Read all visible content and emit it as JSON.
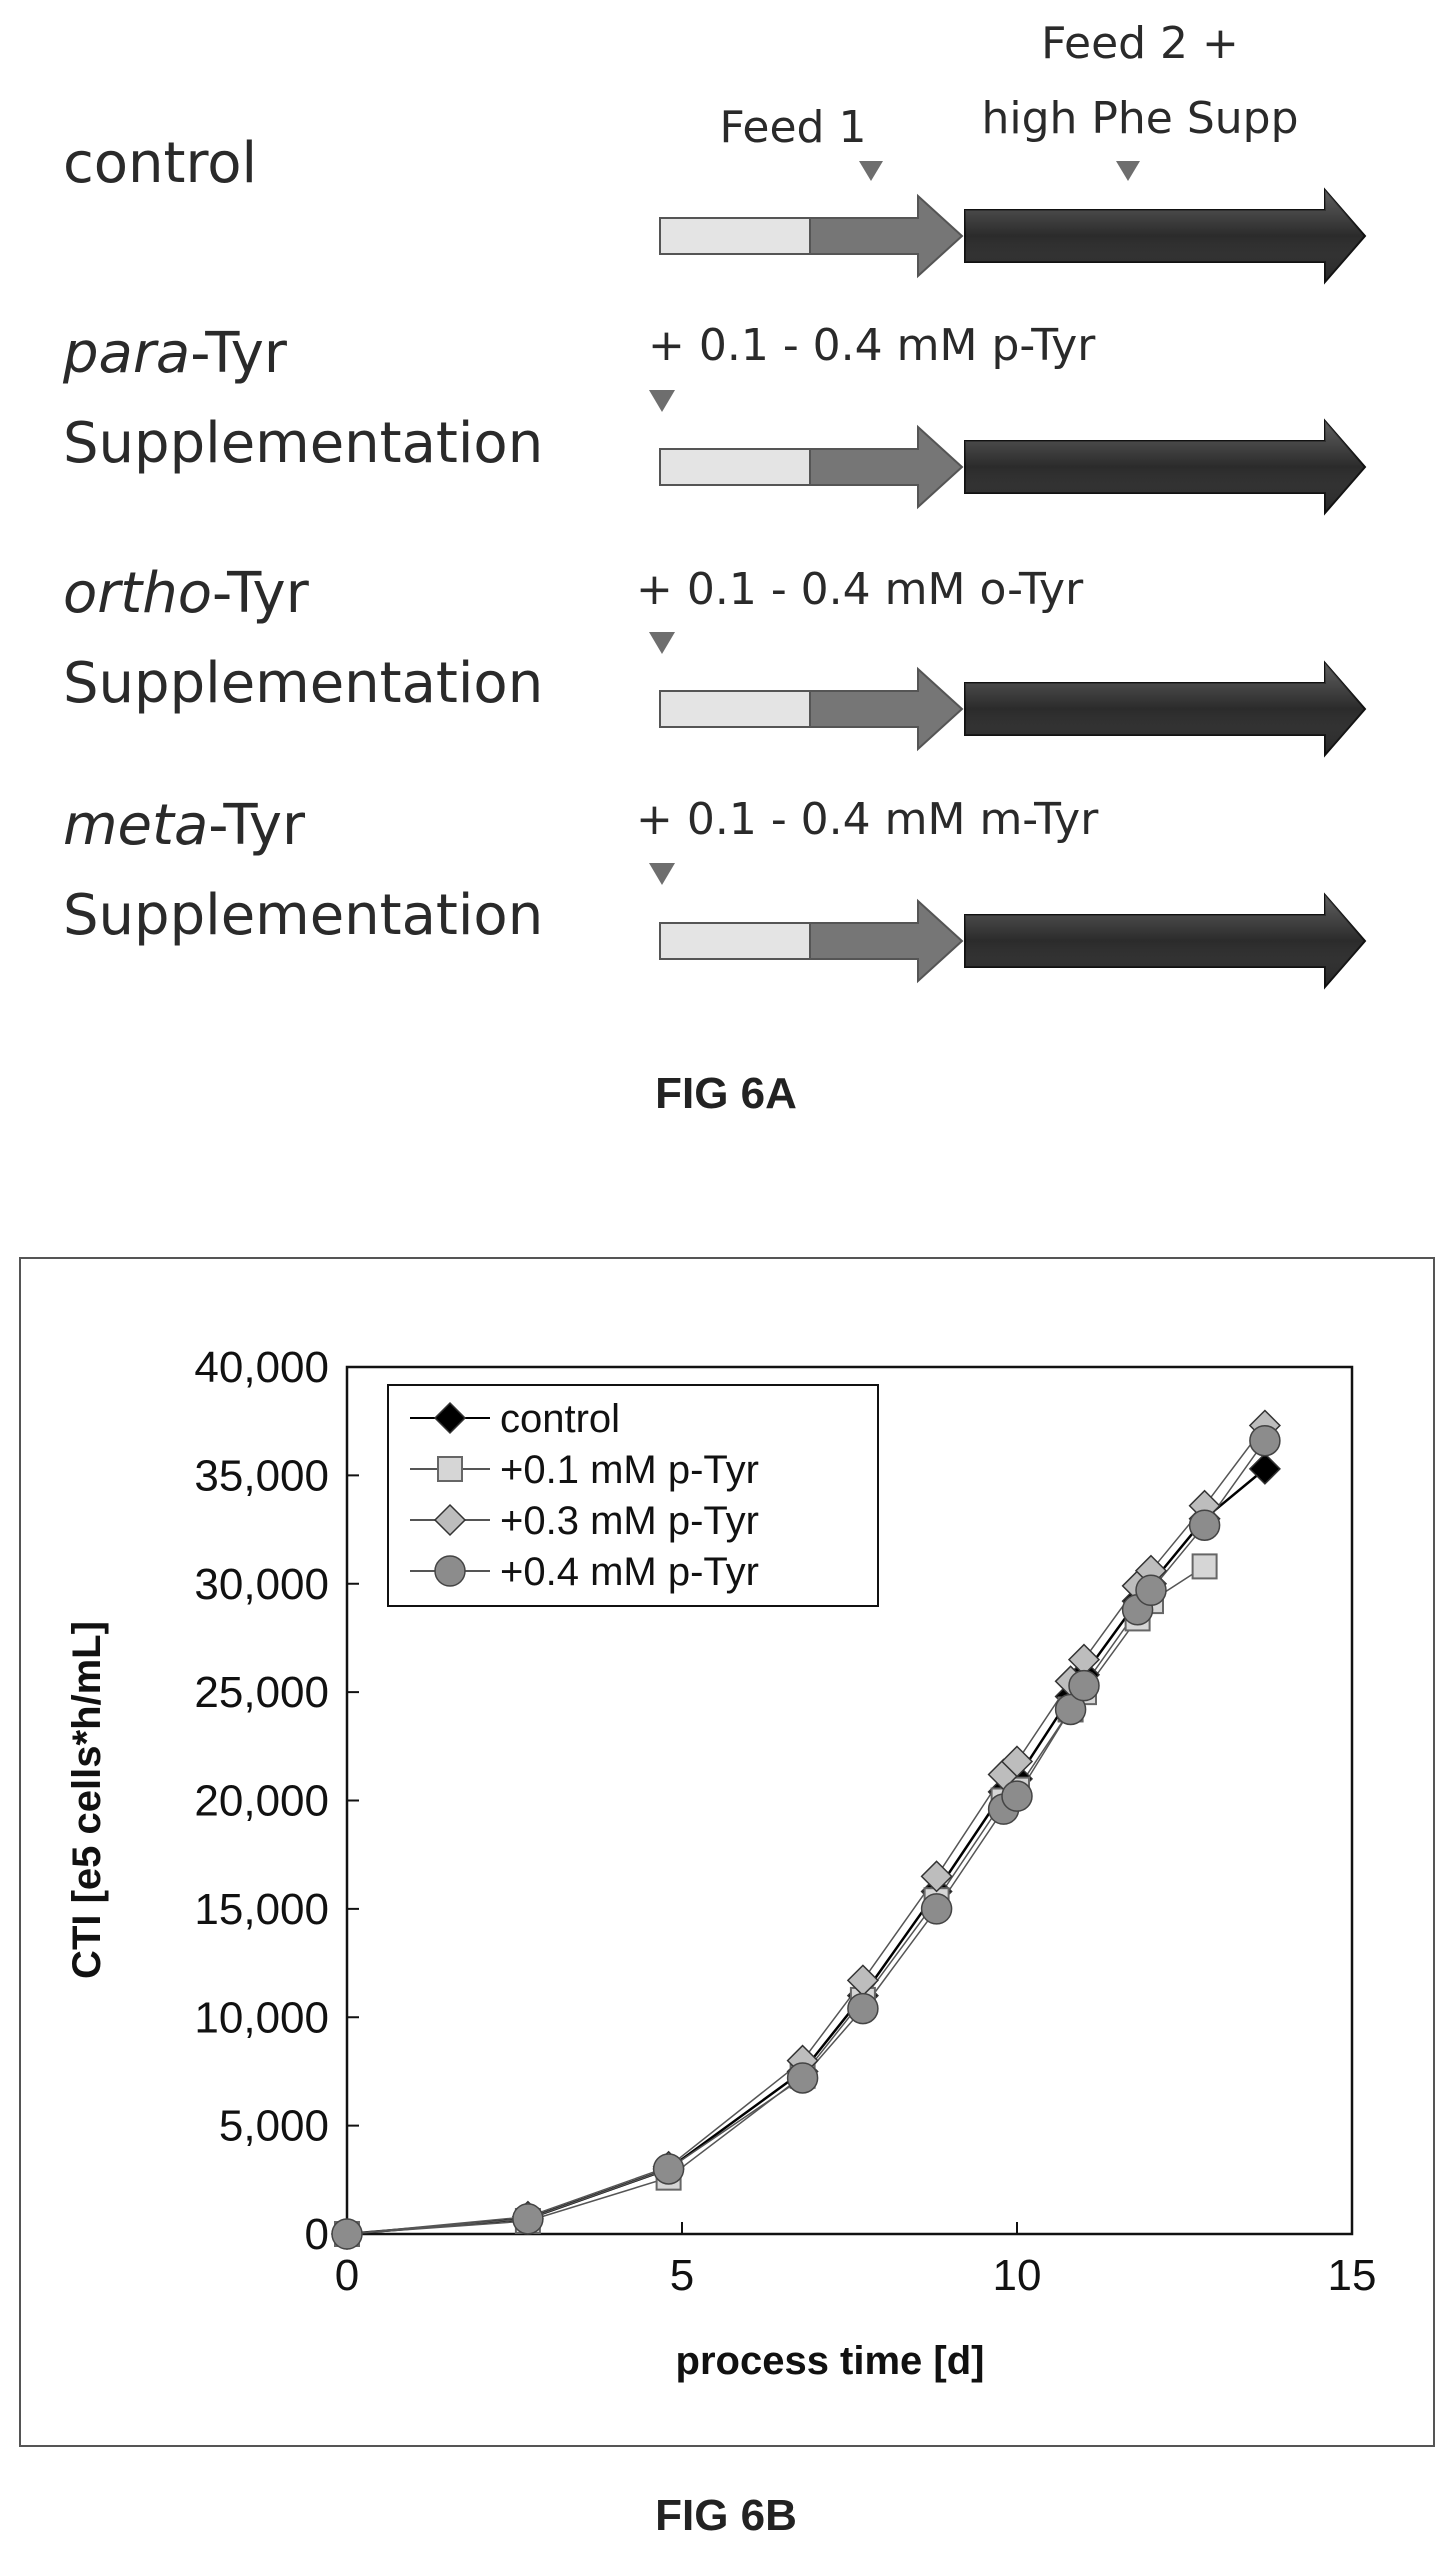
{
  "figure_a": {
    "caption": "FIG 6A",
    "rows": [
      {
        "label_italic": "",
        "label_rest": "control",
        "label_line2": "",
        "annotation": ""
      },
      {
        "label_italic": "para",
        "label_rest": "-Tyr",
        "label_line2": "Supplementation",
        "annotation": "+ 0.1 - 0.4 mM p-Tyr"
      },
      {
        "label_italic": "ortho",
        "label_rest": "-Tyr",
        "label_line2": "Supplementation",
        "annotation": "+ 0.1 - 0.4 mM o-Tyr"
      },
      {
        "label_italic": "meta",
        "label_rest": "-Tyr",
        "label_line2": "Supplementation",
        "annotation": "+ 0.1 - 0.4 mM m-Tyr"
      }
    ],
    "feed1_label": "Feed 1",
    "feed2_label_line1": "Feed 2 +",
    "feed2_label_line2": "high Phe Supp",
    "colors": {
      "light_segment": "#e4e4e4",
      "mid_segment": "#767676",
      "dark_segment": "#2b2b2b",
      "marker": "#6e6e6e"
    }
  },
  "chart_data": {
    "type": "scatter",
    "caption": "FIG 6B",
    "xlabel": "process time [d]",
    "ylabel": "CTI [e5 cells*h/mL]",
    "xlim": [
      0,
      15
    ],
    "ylim": [
      0,
      40000
    ],
    "x_ticks": [
      "0",
      "5",
      "10",
      "15"
    ],
    "y_ticks": [
      "0",
      "5,000",
      "10,000",
      "15,000",
      "20,000",
      "25,000",
      "30,000",
      "35,000",
      "40,000"
    ],
    "grid": false,
    "legend_position": "top-left",
    "series": [
      {
        "name": "control",
        "marker": "diamond",
        "color": "#000000",
        "points": [
          [
            0,
            0
          ],
          [
            2.7,
            700
          ],
          [
            4.8,
            3000
          ],
          [
            6.8,
            7500
          ],
          [
            7.7,
            11000
          ],
          [
            8.8,
            15800
          ],
          [
            9.8,
            20400
          ],
          [
            10.0,
            21000
          ],
          [
            10.8,
            24800
          ],
          [
            11.0,
            25800
          ],
          [
            11.8,
            29200
          ],
          [
            12.0,
            30000
          ],
          [
            12.8,
            33000
          ],
          [
            13.7,
            35300
          ]
        ]
      },
      {
        "name": "+0.1 mM p-Tyr",
        "marker": "square",
        "color": "#d6d6d6",
        "points": [
          [
            0,
            0
          ],
          [
            2.7,
            600
          ],
          [
            4.8,
            2600
          ],
          [
            6.8,
            7300
          ],
          [
            7.7,
            10800
          ],
          [
            8.8,
            15400
          ],
          [
            9.8,
            20000
          ],
          [
            10.0,
            20500
          ],
          [
            10.8,
            24200
          ],
          [
            11.0,
            25000
          ],
          [
            11.8,
            28400
          ],
          [
            12.0,
            29200
          ],
          [
            12.8,
            30800
          ]
        ]
      },
      {
        "name": "+0.3 mM p-Tyr",
        "marker": "diamond",
        "color": "#bdbdbd",
        "points": [
          [
            0,
            0
          ],
          [
            2.7,
            800
          ],
          [
            4.8,
            3100
          ],
          [
            6.8,
            8000
          ],
          [
            7.7,
            11700
          ],
          [
            8.8,
            16500
          ],
          [
            9.8,
            21200
          ],
          [
            10.0,
            21800
          ],
          [
            10.8,
            25500
          ],
          [
            11.0,
            26500
          ],
          [
            11.8,
            29900
          ],
          [
            12.0,
            30600
          ],
          [
            12.8,
            33600
          ],
          [
            13.7,
            37300
          ]
        ]
      },
      {
        "name": "+0.4 mM p-Tyr",
        "marker": "circle",
        "color": "#8c8c8c",
        "points": [
          [
            0,
            0
          ],
          [
            2.7,
            700
          ],
          [
            4.8,
            3000
          ],
          [
            6.8,
            7200
          ],
          [
            7.7,
            10400
          ],
          [
            8.8,
            15000
          ],
          [
            9.8,
            19600
          ],
          [
            10.0,
            20200
          ],
          [
            10.8,
            24200
          ],
          [
            11.0,
            25300
          ],
          [
            11.8,
            28800
          ],
          [
            12.0,
            29700
          ],
          [
            12.8,
            32700
          ],
          [
            13.7,
            36600
          ]
        ]
      }
    ]
  }
}
